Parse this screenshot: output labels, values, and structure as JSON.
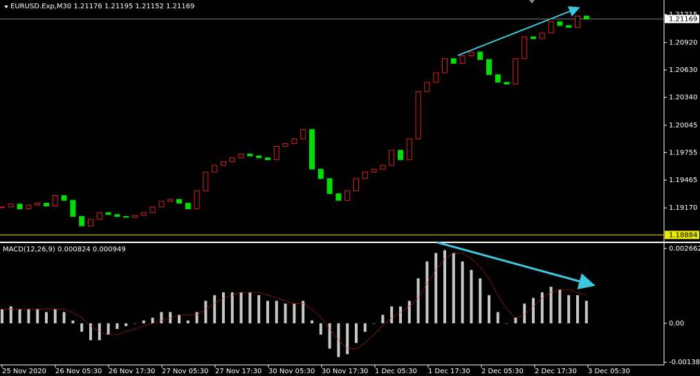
{
  "chart_data": [
    {
      "type": "candlestick",
      "title": "EURUSD.Exp,M30  1.21176 1.21195 1.21152 1.21169",
      "ylim": [
        1.1882,
        1.2137
      ],
      "yticks": [
        1.21215,
        {
          "value": 1.2092,
          "label": "1.20920"
        },
        {
          "value": 1.2063,
          "label": "1.20630"
        },
        {
          "value": 1.2034,
          "label": "1.20340"
        },
        1.20045,
        1.19755,
        1.19465,
        {
          "value": 1.1917,
          "label": "1.19170"
        }
      ],
      "up_color": "#e0201e",
      "down_color": "#00e000",
      "last_price": 1.21169,
      "last_color": "#808080",
      "level": 1.18884,
      "level_color": "#e8e800",
      "values": [
        1.1918,
        1.1921,
        1.1916,
        1.192,
        1.1922,
        1.1919,
        1.193,
        1.1925,
        1.1908,
        1.1898,
        1.1905,
        1.1912,
        1.191,
        1.1908,
        1.1907,
        1.1909,
        1.1912,
        1.1918,
        1.1924,
        1.1926,
        1.1922,
        1.1916,
        1.1935,
        1.1955,
        1.1962,
        1.1966,
        1.197,
        1.1974,
        1.1972,
        1.197,
        1.1968,
        1.1982,
        1.1985,
        1.199,
        1.2,
        1.1958,
        1.1948,
        1.1932,
        1.1925,
        1.1935,
        1.1948,
        1.1955,
        1.1958,
        1.1962,
        1.1978,
        1.1968,
        1.199,
        1.204,
        1.205,
        1.206,
        1.2075,
        1.207,
        1.2078,
        1.2082,
        1.2074,
        1.2058,
        1.205,
        1.2048,
        1.2075,
        1.2098,
        1.2096,
        1.2102,
        1.2114,
        1.211,
        1.2108,
        1.212,
        1.21169
      ]
    },
    {
      "type": "bar",
      "title": "MACD(12,26,9) 0.000824 0.000949",
      "ylim": [
        -0.00148,
        0.00283
      ],
      "yticks": [
        0.002662,
        {
          "value": 0,
          "label": "0.00"
        },
        -0.001385
      ],
      "series": [
        {
          "name": "MACD",
          "color": "#c8c8c8",
          "values": [
            0.0005,
            0.0006,
            0.0005,
            0.0005,
            0.0005,
            0.0004,
            0.0005,
            0.0004,
            0.0001,
            -0.0003,
            -0.0006,
            -0.0006,
            -0.0004,
            -0.0002,
            -0.0001,
            0,
            0.0001,
            0.0002,
            0.0004,
            0.0004,
            0.0003,
            0.0001,
            0.0004,
            0.0008,
            0.001,
            0.0011,
            0.0011,
            0.0011,
            0.0011,
            0.001,
            0.0008,
            0.0008,
            0.0007,
            0.0007,
            0.0008,
            0.0001,
            -0.0004,
            -0.0009,
            -0.0012,
            -0.0011,
            -0.0007,
            -0.0003,
            0,
            0.0003,
            0.0006,
            0.0006,
            0.0008,
            0.0016,
            0.0022,
            0.0025,
            0.0026,
            0.0025,
            0.0022,
            0.0019,
            0.0016,
            0.001,
            0.0004,
            0,
            0.0002,
            0.0007,
            0.0009,
            0.0011,
            0.0013,
            0.0012,
            0.001,
            0.001,
            0.0008
          ]
        },
        {
          "name": "Signal",
          "color": "#e02020",
          "values": [
            0.0005,
            0.0005,
            0.0005,
            0.0005,
            0.0005,
            0.0005,
            0.0005,
            0.0005,
            0.0004,
            0.0002,
            -0.0001,
            -0.0003,
            -0.0004,
            -0.0004,
            -0.0003,
            -0.0002,
            -0.0001,
            0,
            0.0001,
            0.0002,
            0.0003,
            0.0003,
            0.0003,
            0.0005,
            0.0007,
            0.0009,
            0.001,
            0.0011,
            0.0011,
            0.0011,
            0.001,
            0.0009,
            0.0008,
            0.0007,
            0.0007,
            0.0005,
            0.0002,
            -0.0002,
            -0.0006,
            -0.0009,
            -0.0009,
            -0.0007,
            -0.0004,
            -0.0001,
            0.0002,
            0.0004,
            0.0006,
            0.0009,
            0.0014,
            0.0019,
            0.0023,
            0.0025,
            0.0025,
            0.0023,
            0.002,
            0.0016,
            0.001,
            0.0005,
            0.0002,
            0.0003,
            0.0006,
            0.0009,
            0.0011,
            0.0012,
            0.0012,
            0.0011,
            0.001
          ]
        }
      ]
    },
    {
      "type": "time-axis",
      "categories": [
        "25 Nov 2020",
        "26 Nov 05:30",
        "26 Nov 17:30",
        "27 Nov 05:30",
        "27 Nov 17:30",
        "30 Nov 05:30",
        "30 Nov 17:30",
        "1 Dec 05:30",
        "1 Dec 17:30",
        "2 Dec 05:30",
        "2 Dec 17:30",
        "3 Dec 05:30"
      ]
    }
  ]
}
